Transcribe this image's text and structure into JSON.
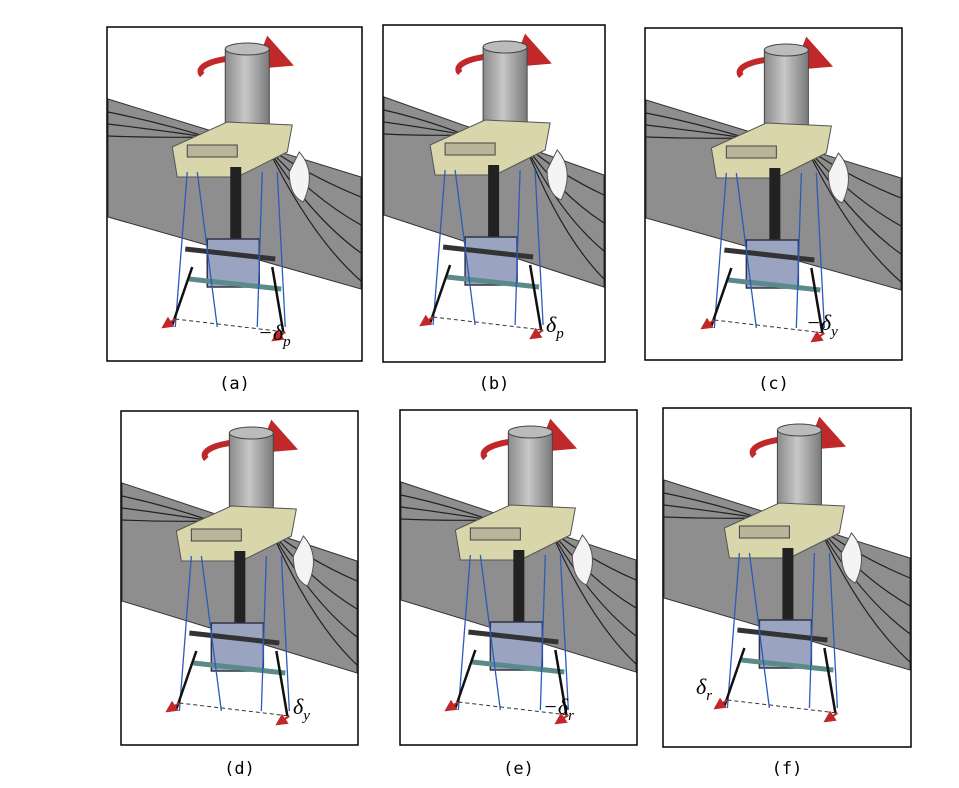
{
  "panels": [
    {
      "caption": "(a)",
      "label": "−δ",
      "subscript": "p"
    },
    {
      "caption": "(b)",
      "label": "δ",
      "subscript": "p"
    },
    {
      "caption": "(c)",
      "label": "−δ",
      "subscript": "y"
    },
    {
      "caption": "(d)",
      "label": "δ",
      "subscript": "y"
    },
    {
      "caption": "(e)",
      "label": "−δ",
      "subscript": "r"
    },
    {
      "caption": "(f)",
      "label": "δ",
      "subscript": "r"
    }
  ]
}
